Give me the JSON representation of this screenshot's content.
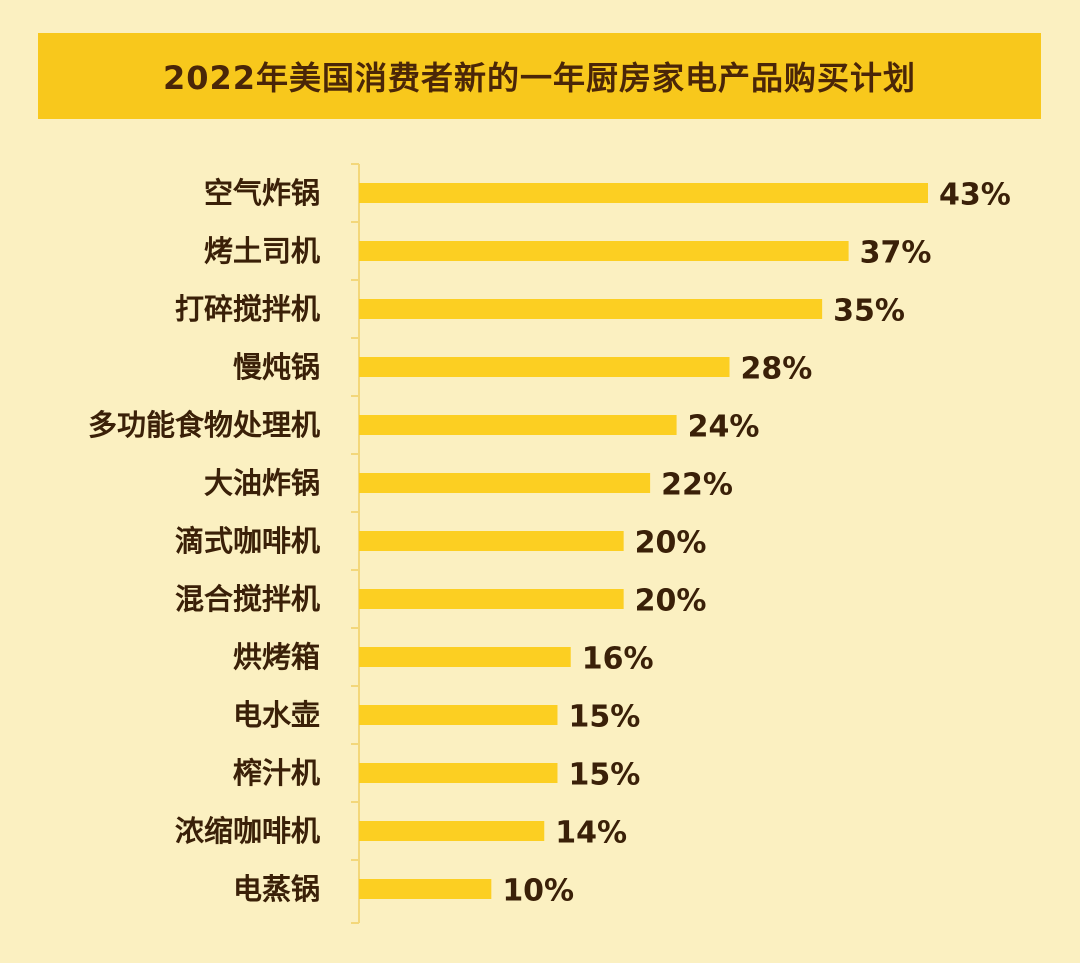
{
  "colors": {
    "background": "#FBF0C1",
    "title_bar": "#F8C81C",
    "bar": "#FCCF22",
    "axis": "#F3D77A",
    "text": "#3A2008"
  },
  "chart_data": {
    "type": "bar",
    "orientation": "horizontal",
    "title": "2022年美国消费者新的一年厨房家电产品购买计划",
    "categories": [
      "空气炸锅",
      "烤土司机",
      "打碎搅拌机",
      "慢炖锅",
      "多功能食物处理机",
      "大油炸锅",
      "滴式咖啡机",
      "混合搅拌机",
      "烘烤箱",
      "电水壶",
      "榨汁机",
      "浓缩咖啡机",
      "电蒸锅"
    ],
    "values": [
      43,
      37,
      35,
      28,
      24,
      22,
      20,
      20,
      16,
      15,
      15,
      14,
      10
    ],
    "value_labels": [
      "43%",
      "37%",
      "35%",
      "28%",
      "24%",
      "22%",
      "20%",
      "20%",
      "16%",
      "15%",
      "15%",
      "14%",
      "10%"
    ],
    "unit": "%",
    "grid": false,
    "legend": "none"
  }
}
